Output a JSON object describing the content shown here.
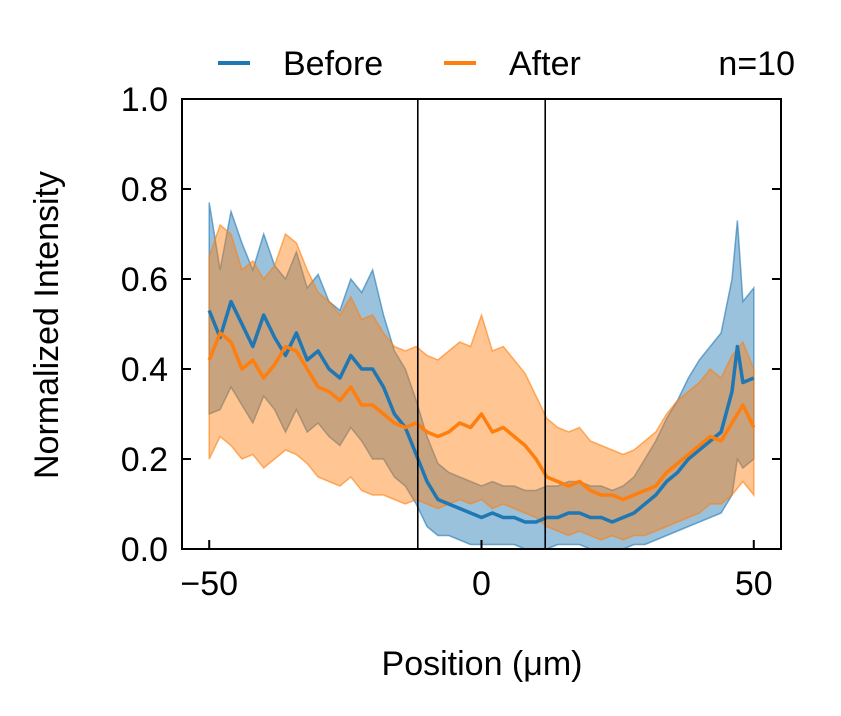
{
  "chart_data": {
    "type": "line",
    "title": "",
    "xlabel": "Position (μm)",
    "ylabel": "Normalized Intensity",
    "xlim": [
      -55,
      55
    ],
    "ylim": [
      0.0,
      1.0
    ],
    "x_ticks": [
      -50,
      0,
      50
    ],
    "x_tick_labels": [
      "−50",
      "0",
      "50"
    ],
    "y_ticks": [
      0.0,
      0.2,
      0.4,
      0.6,
      0.8,
      1.0
    ],
    "y_tick_labels": [
      "0.0",
      "0.2",
      "0.4",
      "0.6",
      "0.8",
      "1.0"
    ],
    "grid": false,
    "legend_position": "top",
    "annotation": "n=10",
    "vertical_lines_x": [
      -11.7,
      11.7
    ],
    "shading": "mean ± spread band",
    "series": [
      {
        "name": "Before",
        "color": "#1f77b4",
        "x": [
          -50,
          -48,
          -46,
          -44,
          -42,
          -40,
          -38,
          -36,
          -34,
          -32,
          -30,
          -28,
          -26,
          -24,
          -22,
          -20,
          -18,
          -16,
          -14,
          -12,
          -10,
          -8,
          -6,
          -4,
          -2,
          0,
          2,
          4,
          6,
          8,
          10,
          12,
          14,
          16,
          18,
          20,
          22,
          24,
          26,
          28,
          30,
          32,
          34,
          36,
          38,
          40,
          42,
          44,
          46,
          47,
          48,
          50
        ],
        "mean": [
          0.53,
          0.47,
          0.55,
          0.5,
          0.45,
          0.52,
          0.47,
          0.43,
          0.48,
          0.42,
          0.44,
          0.4,
          0.38,
          0.43,
          0.4,
          0.4,
          0.36,
          0.3,
          0.27,
          0.21,
          0.15,
          0.11,
          0.1,
          0.09,
          0.08,
          0.07,
          0.08,
          0.07,
          0.07,
          0.06,
          0.06,
          0.07,
          0.07,
          0.08,
          0.08,
          0.07,
          0.07,
          0.06,
          0.07,
          0.08,
          0.1,
          0.12,
          0.15,
          0.17,
          0.2,
          0.22,
          0.24,
          0.26,
          0.35,
          0.45,
          0.37,
          0.38
        ],
        "upper": [
          0.77,
          0.62,
          0.75,
          0.68,
          0.62,
          0.7,
          0.63,
          0.6,
          0.66,
          0.58,
          0.61,
          0.55,
          0.53,
          0.6,
          0.57,
          0.62,
          0.52,
          0.44,
          0.4,
          0.33,
          0.25,
          0.19,
          0.17,
          0.16,
          0.15,
          0.14,
          0.15,
          0.14,
          0.14,
          0.13,
          0.13,
          0.14,
          0.14,
          0.15,
          0.15,
          0.14,
          0.14,
          0.13,
          0.14,
          0.16,
          0.2,
          0.24,
          0.29,
          0.33,
          0.38,
          0.42,
          0.45,
          0.48,
          0.6,
          0.73,
          0.55,
          0.58
        ],
        "lower": [
          0.3,
          0.31,
          0.36,
          0.32,
          0.28,
          0.34,
          0.31,
          0.26,
          0.31,
          0.26,
          0.28,
          0.25,
          0.23,
          0.27,
          0.24,
          0.2,
          0.2,
          0.16,
          0.14,
          0.1,
          0.05,
          0.03,
          0.03,
          0.02,
          0.01,
          0.01,
          0.01,
          0.01,
          0.01,
          0.0,
          0.0,
          0.0,
          0.01,
          0.01,
          0.01,
          0.0,
          0.0,
          0.0,
          0.0,
          0.01,
          0.01,
          0.02,
          0.03,
          0.04,
          0.05,
          0.06,
          0.07,
          0.08,
          0.12,
          0.2,
          0.18,
          0.2
        ]
      },
      {
        "name": "After",
        "color": "#ff7f0e",
        "x": [
          -50,
          -48,
          -46,
          -44,
          -42,
          -40,
          -38,
          -36,
          -34,
          -32,
          -30,
          -28,
          -26,
          -24,
          -22,
          -20,
          -18,
          -16,
          -14,
          -12,
          -10,
          -8,
          -6,
          -4,
          -2,
          0,
          2,
          4,
          6,
          8,
          10,
          12,
          14,
          16,
          18,
          20,
          22,
          24,
          26,
          28,
          30,
          32,
          34,
          36,
          38,
          40,
          42,
          44,
          46,
          48,
          50
        ],
        "mean": [
          0.42,
          0.48,
          0.46,
          0.4,
          0.42,
          0.38,
          0.41,
          0.45,
          0.44,
          0.4,
          0.36,
          0.35,
          0.33,
          0.36,
          0.32,
          0.32,
          0.3,
          0.28,
          0.27,
          0.28,
          0.26,
          0.25,
          0.26,
          0.28,
          0.27,
          0.3,
          0.26,
          0.27,
          0.25,
          0.23,
          0.2,
          0.16,
          0.15,
          0.14,
          0.15,
          0.13,
          0.12,
          0.12,
          0.11,
          0.12,
          0.13,
          0.14,
          0.17,
          0.19,
          0.21,
          0.23,
          0.25,
          0.24,
          0.28,
          0.32,
          0.27
        ],
        "upper": [
          0.65,
          0.72,
          0.7,
          0.62,
          0.64,
          0.6,
          0.63,
          0.7,
          0.68,
          0.62,
          0.57,
          0.55,
          0.52,
          0.56,
          0.51,
          0.52,
          0.48,
          0.45,
          0.44,
          0.45,
          0.43,
          0.42,
          0.44,
          0.46,
          0.45,
          0.52,
          0.44,
          0.45,
          0.42,
          0.39,
          0.34,
          0.29,
          0.27,
          0.26,
          0.27,
          0.24,
          0.23,
          0.22,
          0.21,
          0.22,
          0.24,
          0.26,
          0.3,
          0.33,
          0.35,
          0.37,
          0.4,
          0.38,
          0.43,
          0.46,
          0.4
        ],
        "lower": [
          0.2,
          0.25,
          0.23,
          0.2,
          0.21,
          0.18,
          0.2,
          0.22,
          0.21,
          0.19,
          0.16,
          0.15,
          0.14,
          0.16,
          0.13,
          0.12,
          0.12,
          0.11,
          0.1,
          0.11,
          0.1,
          0.09,
          0.1,
          0.11,
          0.1,
          0.11,
          0.09,
          0.1,
          0.09,
          0.08,
          0.07,
          0.05,
          0.04,
          0.03,
          0.04,
          0.03,
          0.02,
          0.03,
          0.02,
          0.03,
          0.03,
          0.04,
          0.05,
          0.06,
          0.07,
          0.08,
          0.1,
          0.1,
          0.12,
          0.15,
          0.12
        ]
      }
    ]
  }
}
